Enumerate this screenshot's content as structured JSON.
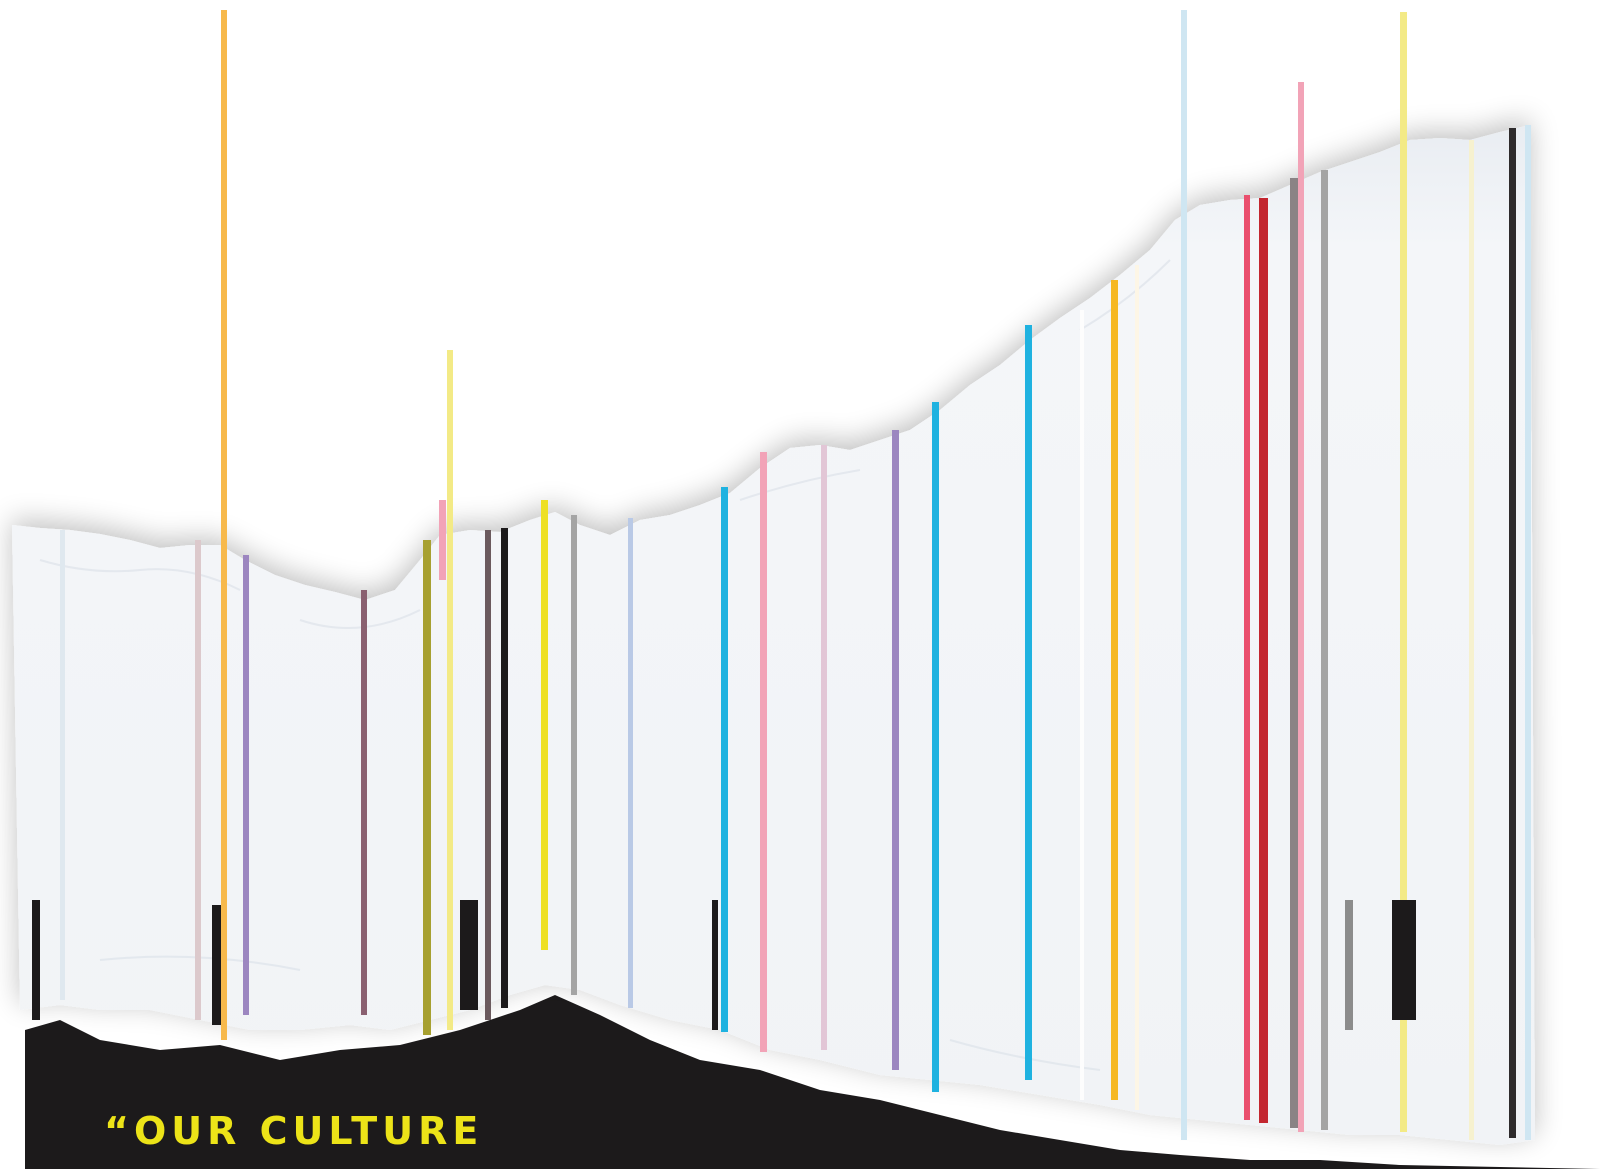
{
  "quote": {
    "text": "“OUR CULTURE"
  },
  "colors": {
    "paper": "#f3f5f8",
    "black_band": "#1c1a1b",
    "quote_yellow": "#ece318",
    "orange": "#f7b94c",
    "purple": "#9c86c0",
    "mauve": "#8a6070",
    "olive": "#a7a030",
    "pale_yellow": "#f3ea86",
    "bright_yellow": "#eee024",
    "cyan": "#1fb2e0",
    "pink": "#f2a3b7",
    "lilac": "#e2c6d6",
    "gold": "#f6b823",
    "red": "#c3262f",
    "rose": "#ea4f6e",
    "gray": "#a4a4a4",
    "dark": "#2e2b2c",
    "light_blue": "#cfe6f2"
  }
}
